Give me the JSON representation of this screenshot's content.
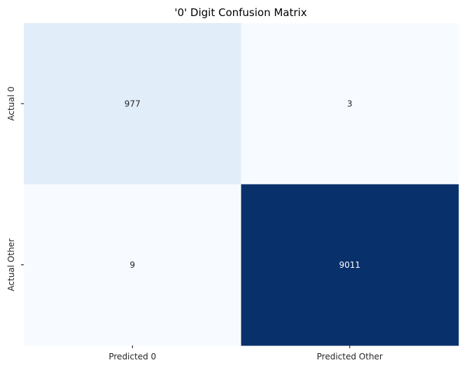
{
  "chart_data": {
    "type": "heatmap",
    "title": "'0' Digit Confusion Matrix",
    "xlabel": "",
    "ylabel": "",
    "x_tick_labels": [
      "Predicted 0",
      "Predicted Other"
    ],
    "y_tick_labels": [
      "Actual 0",
      "Actual Other"
    ],
    "values": [
      [
        977,
        3
      ],
      [
        9,
        9011
      ]
    ],
    "colormap": "Blues",
    "colorbar": false,
    "grid": false,
    "colors": {
      "low": "#f7fbff",
      "high": "#08306b",
      "light_text": "#ffffff",
      "dark_text": "#262626"
    }
  }
}
